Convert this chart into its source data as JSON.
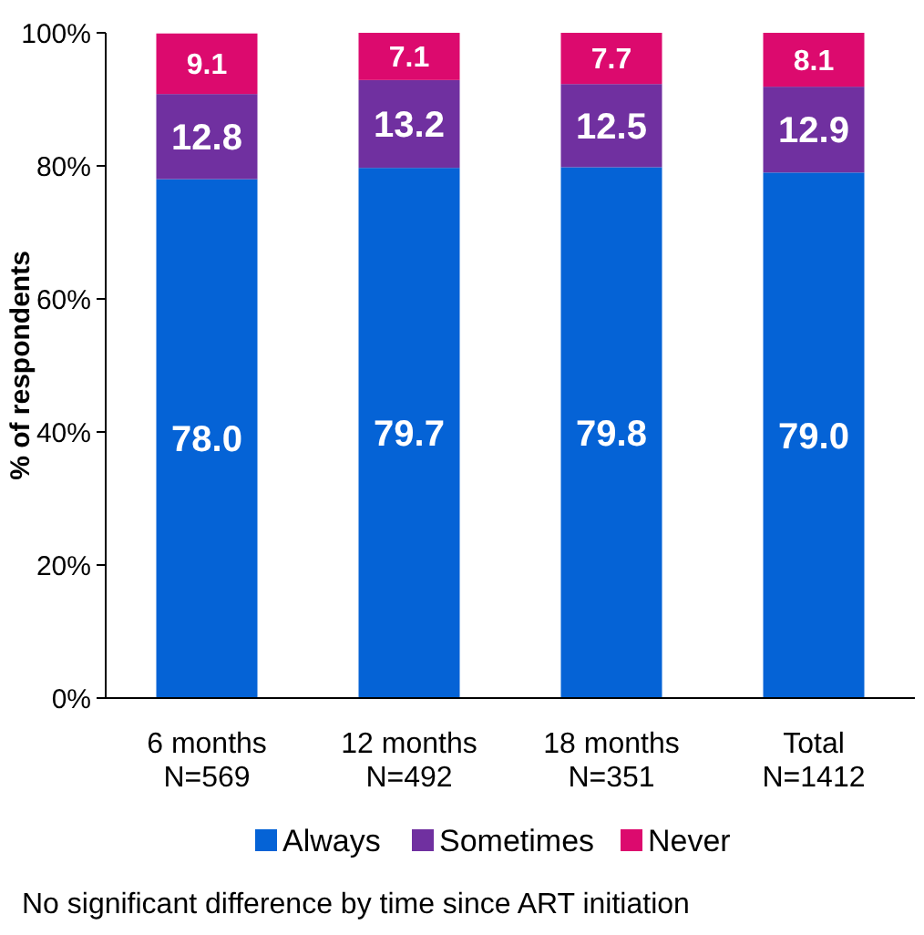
{
  "chart_data": {
    "type": "bar",
    "stacked": true,
    "ylabel": "% of respondents",
    "categories": [
      "6 months\nN=569",
      "12 months\nN=492",
      "18 months\nN=351",
      "Total\nN=1412"
    ],
    "series": [
      {
        "name": "Always",
        "color": "#0563d6",
        "values": [
          78.0,
          79.7,
          79.8,
          79.0
        ],
        "value_labels": [
          "78.0",
          "79.7",
          "79.8",
          "79.0"
        ]
      },
      {
        "name": "Sometimes",
        "color": "#7030a0",
        "values": [
          12.8,
          13.2,
          12.5,
          12.9
        ],
        "value_labels": [
          "12.8",
          "13.2",
          "12.5",
          "12.9"
        ]
      },
      {
        "name": "Never",
        "color": "#dc0a6e",
        "values": [
          9.1,
          7.1,
          7.7,
          8.1
        ],
        "value_labels": [
          "9.1",
          "7.1",
          "7.7",
          "8.1"
        ]
      }
    ],
    "ylim": [
      0,
      100
    ],
    "yticks": [
      {
        "value": 0,
        "label": "0%"
      },
      {
        "value": 20,
        "label": "20%"
      },
      {
        "value": 40,
        "label": "40%"
      },
      {
        "value": 60,
        "label": "60%"
      },
      {
        "value": 80,
        "label": "80%"
      },
      {
        "value": 100,
        "label": "100%"
      }
    ],
    "grid": false,
    "legend": "bottom",
    "annotations": [
      "No significant difference by time since ART initiation"
    ]
  }
}
